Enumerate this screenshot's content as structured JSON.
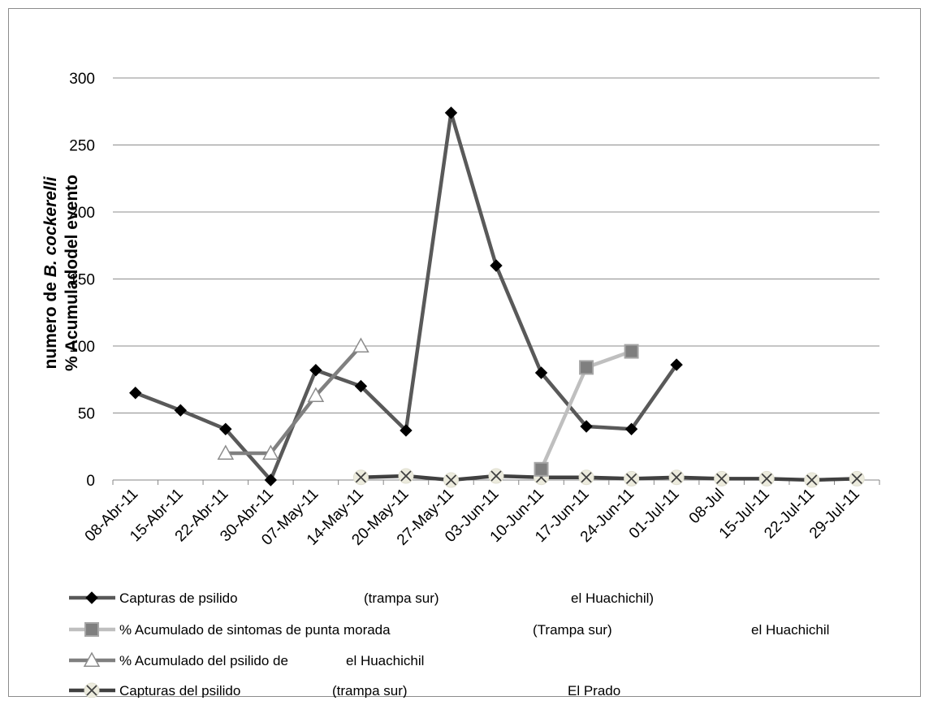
{
  "chart_data": {
    "type": "line",
    "ylabel_lines": [
      "numero de B. cockerelli",
      "% Acumuladodel evento"
    ],
    "ylabel_line1_prefix": "numero de ",
    "ylabel_line1_italic": "B. cockerelli",
    "ylim": [
      0,
      300
    ],
    "yticks": [
      0,
      50,
      100,
      150,
      200,
      250,
      300
    ],
    "grid": "horizontal",
    "legend_position": "bottom",
    "categories": [
      "08-Abr-11",
      "15-Abr-11",
      "22-Abr-11",
      "30-Abr-11",
      "07-May-11",
      "14-May-11",
      "20-May-11",
      "27-May-11",
      "03-Jun-11",
      "10-Jun-11",
      "17-Jun-11",
      "24-Jun-11",
      "01-Jul-11",
      "08-Jul",
      "15-Jul-11",
      "22-Jul-11",
      "29-Jul-11"
    ],
    "series": [
      {
        "name": "Capturas de psilido (trampa sur) el Huachichil)",
        "legend_parts": [
          "Capturas de psilido",
          "(trampa sur)",
          "el  Huachichil)"
        ],
        "color": "#595959",
        "marker": "diamond",
        "values": [
          65,
          52,
          38,
          0,
          82,
          70,
          37,
          274,
          160,
          80,
          40,
          38,
          86,
          null,
          null,
          null,
          null
        ]
      },
      {
        "name": "% Acumulado de sintomas de punta morada (Trampa sur) el Huachichil",
        "legend_parts": [
          "% Acumulado de sintomas de punta morada",
          "(Trampa sur)",
          "el Huachichil"
        ],
        "color": "#bfbfbf",
        "marker": "square",
        "values": [
          null,
          null,
          null,
          null,
          null,
          null,
          null,
          null,
          null,
          8,
          84,
          96,
          null,
          null,
          null,
          null,
          null
        ]
      },
      {
        "name": "% Acumulado del psilido de el Huachichil",
        "legend_parts": [
          "% Acumulado del psilido de",
          "el Huachichil"
        ],
        "color": "#808080",
        "marker": "triangle",
        "values": [
          null,
          null,
          20,
          20,
          63,
          100,
          null,
          null,
          null,
          null,
          null,
          null,
          null,
          null,
          null,
          null,
          null
        ]
      },
      {
        "name": "Capturas del psilido (trampa sur) El Prado",
        "legend_parts": [
          "Capturas del psilido",
          "(trampa sur)",
          "El Prado"
        ],
        "color": "#404040",
        "marker": "x",
        "values": [
          null,
          null,
          null,
          null,
          null,
          2,
          3,
          0,
          3,
          2,
          2,
          1,
          2,
          1,
          1,
          0,
          1
        ]
      }
    ]
  }
}
